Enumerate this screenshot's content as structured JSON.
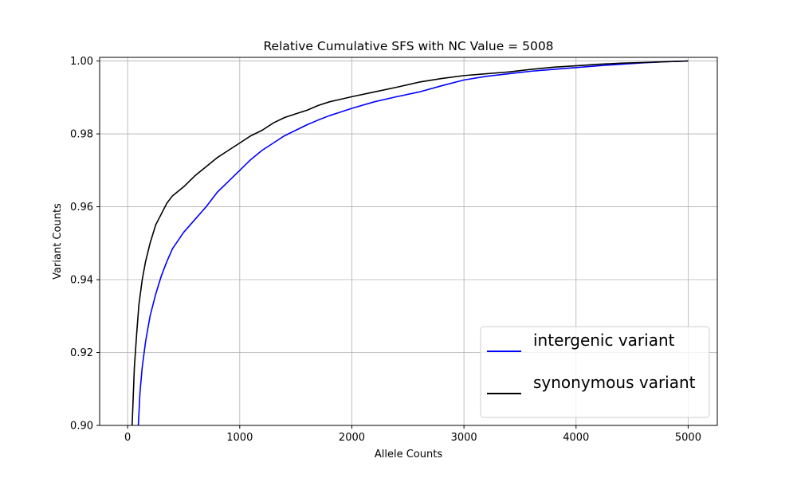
{
  "chart_data": {
    "type": "line",
    "title": "Relative Cumulative SFS with NC Value = 5008",
    "xlabel": "Allele Counts",
    "ylabel": "Variant Counts",
    "xlim": [
      -250,
      5260
    ],
    "ylim": [
      0.9,
      1.001
    ],
    "xticks": [
      0,
      1000,
      2000,
      3000,
      4000,
      5000
    ],
    "xtick_labels": [
      "0",
      "1000",
      "2000",
      "3000",
      "4000",
      "5000"
    ],
    "yticks": [
      0.9,
      0.92,
      0.94,
      0.96,
      0.98,
      1.0
    ],
    "ytick_labels": [
      "0.90",
      "0.92",
      "0.94",
      "0.96",
      "0.98",
      "1.00"
    ],
    "grid": true,
    "legend_position": "lower-right",
    "series": [
      {
        "name": "intergenic variant",
        "color": "#0000ff",
        "x": [
          95,
          110,
          130,
          160,
          200,
          250,
          300,
          350,
          400,
          500,
          600,
          700,
          800,
          900,
          1000,
          1100,
          1200,
          1300,
          1400,
          1500,
          1600,
          1700,
          1800,
          1900,
          2000,
          2200,
          2400,
          2600,
          2800,
          3000,
          3200,
          3400,
          3600,
          3800,
          4000,
          4200,
          4400,
          4600,
          4800,
          5000
        ],
        "y": [
          0.9,
          0.909,
          0.916,
          0.923,
          0.93,
          0.936,
          0.941,
          0.945,
          0.9485,
          0.953,
          0.9565,
          0.96,
          0.964,
          0.967,
          0.97,
          0.973,
          0.9755,
          0.9775,
          0.9795,
          0.981,
          0.9825,
          0.9838,
          0.985,
          0.986,
          0.987,
          0.9888,
          0.9902,
          0.9915,
          0.9932,
          0.9948,
          0.9958,
          0.9965,
          0.9972,
          0.9977,
          0.9982,
          0.9987,
          0.9991,
          0.9995,
          0.9998,
          1.0
        ]
      },
      {
        "name": "synonymous variant",
        "color": "#000000",
        "x": [
          40,
          50,
          60,
          80,
          100,
          130,
          160,
          200,
          250,
          300,
          350,
          400,
          500,
          600,
          700,
          800,
          900,
          1000,
          1100,
          1200,
          1300,
          1400,
          1500,
          1600,
          1700,
          1800,
          1900,
          2000,
          2200,
          2400,
          2600,
          2800,
          3000,
          3200,
          3400,
          3600,
          3800,
          4000,
          4200,
          4400,
          4600,
          4800,
          5000
        ],
        "y": [
          0.9,
          0.908,
          0.916,
          0.925,
          0.933,
          0.94,
          0.945,
          0.95,
          0.955,
          0.958,
          0.961,
          0.963,
          0.9655,
          0.9685,
          0.971,
          0.9735,
          0.9755,
          0.9775,
          0.9795,
          0.981,
          0.983,
          0.9845,
          0.9855,
          0.9865,
          0.9878,
          0.9888,
          0.9895,
          0.9902,
          0.9915,
          0.9928,
          0.9942,
          0.9952,
          0.996,
          0.9965,
          0.997,
          0.9977,
          0.9983,
          0.9987,
          0.9991,
          0.9994,
          0.9996,
          0.9998,
          1.0
        ]
      }
    ]
  }
}
